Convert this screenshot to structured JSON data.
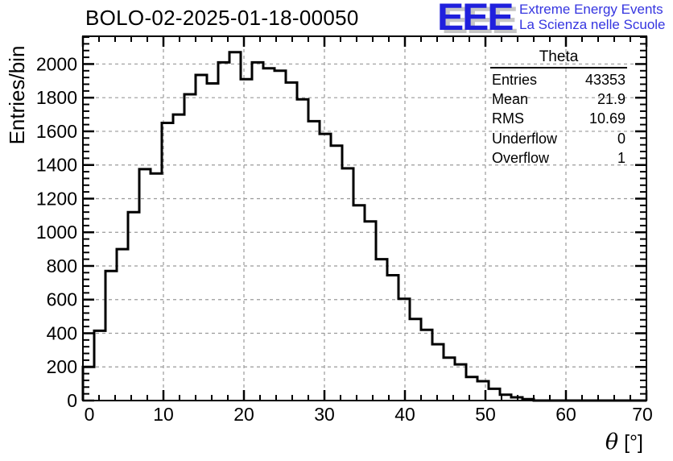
{
  "header": {
    "title": "BOLO-02-2025-01-18-00050",
    "logo": {
      "acronym": "EEE",
      "line1": "Extreme Energy Events",
      "line2": "La Scienza nelle Scuole",
      "color": "#2020dd",
      "shadow_color": "#c6c6c6",
      "text_color": "#3535e0"
    }
  },
  "stats_box": {
    "title": "Theta",
    "rows": [
      {
        "label": "Entries",
        "value": "43353"
      },
      {
        "label": "Mean",
        "value": "21.9"
      },
      {
        "label": "RMS",
        "value": "10.69"
      },
      {
        "label": "Underflow",
        "value": "0"
      },
      {
        "label": "Overflow",
        "value": "1"
      }
    ]
  },
  "chart_data": {
    "type": "bar",
    "subtype": "step-histogram",
    "title": "BOLO-02-2025-01-18-00050",
    "series_name": "Theta",
    "xlabel": "θ [°]",
    "ylabel": "Entries/bin",
    "xlim": [
      0,
      70
    ],
    "ylim": [
      0,
      2165
    ],
    "x_ticks": [
      0,
      10,
      20,
      30,
      40,
      50,
      60,
      70
    ],
    "x_minor_step": 2,
    "y_ticks": [
      0,
      200,
      400,
      600,
      800,
      1000,
      1200,
      1400,
      1600,
      1800,
      2000
    ],
    "y_minor_step": 40,
    "grid": "dashed-major-both",
    "legend_position": "none",
    "bin_start": 0,
    "bin_width": 1.4,
    "bin_counts": [
      200,
      415,
      770,
      900,
      1120,
      1375,
      1350,
      1650,
      1700,
      1820,
      1935,
      1885,
      2010,
      2070,
      1910,
      2010,
      1975,
      1960,
      1890,
      1790,
      1660,
      1585,
      1515,
      1380,
      1160,
      1065,
      840,
      745,
      605,
      485,
      420,
      335,
      255,
      215,
      140,
      115,
      70,
      35,
      19,
      8,
      0,
      0,
      0,
      0,
      0,
      0,
      0,
      0,
      0,
      0
    ],
    "line_color": "#000000",
    "frame_color": "#000000",
    "grid_color": "#9a9a9a"
  }
}
